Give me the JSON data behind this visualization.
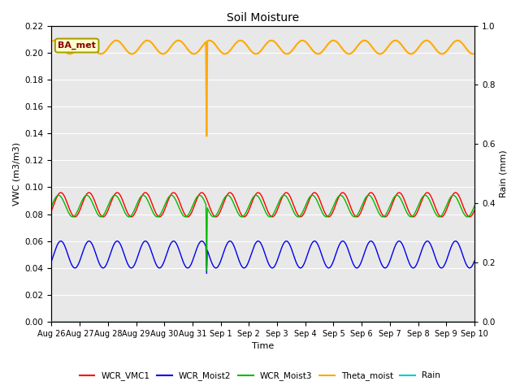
{
  "title": "Soil Moisture",
  "xlabel": "Time",
  "ylabel_left": "VWC (m3/m3)",
  "ylabel_right": "Rain (mm)",
  "ylim_left": [
    0.0,
    0.22
  ],
  "ylim_right": [
    0.0,
    1.0
  ],
  "yticks_left": [
    0.0,
    0.02,
    0.04,
    0.06,
    0.08,
    0.1,
    0.12,
    0.14,
    0.16,
    0.18,
    0.2,
    0.22
  ],
  "yticks_right": [
    0.0,
    0.2,
    0.4,
    0.6,
    0.8,
    1.0
  ],
  "fig_facecolor": "#ffffff",
  "plot_bg_color": "#e8e8e8",
  "grid_color": "#ffffff",
  "station_label": "BA_met",
  "station_label_color": "#8B0000",
  "station_box_facecolor": "#ffffcc",
  "station_box_edgecolor": "#aaa000",
  "legend_entries": [
    "WCR_VMC1",
    "WCR_Moist2",
    "WCR_Moist3",
    "Theta_moist",
    "Rain"
  ],
  "colors": {
    "WCR_VMC1": "#ff0000",
    "WCR_Moist2": "#0000ee",
    "WCR_Moist3": "#00bb00",
    "Theta_moist": "#ffaa00",
    "Rain": "#00cccc"
  },
  "x_tick_labels": [
    "Aug 26",
    "Aug 27",
    "Aug 28",
    "Aug 29",
    "Aug 30",
    "Aug 31",
    "Sep 1",
    "Sep 2",
    "Sep 3",
    "Sep 4",
    "Sep 5",
    "Sep 6",
    "Sep 7",
    "Sep 8",
    "Sep 9",
    "Sep 10"
  ],
  "spike_day": 5.5,
  "theta_base": 0.204,
  "theta_amp": 0.005,
  "theta_period": 1.1,
  "theta_spike_val": 0.138,
  "vmc1_base": 0.087,
  "vmc1_amp": 0.009,
  "moist2_base": 0.05,
  "moist2_amp": 0.01,
  "moist2_spike_val": 0.036,
  "moist3_base": 0.086,
  "moist3_amp": 0.008,
  "moist3_spike_val": 0.038,
  "rain_val": 0.0
}
